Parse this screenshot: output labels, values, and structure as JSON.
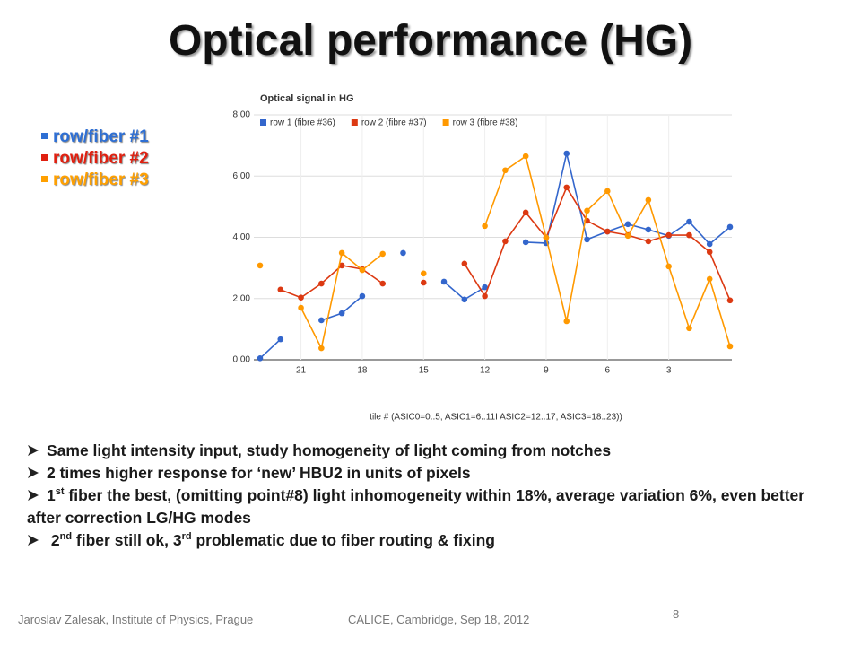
{
  "title": "Optical performance (HG)",
  "legend_bullets": [
    "row/fiber #1",
    "row/fiber #2",
    "row/fiber #3"
  ],
  "bullets": [
    [
      "Same light intensity input, study homogeneity of light coming from notches"
    ],
    [
      "2 times higher response for ‘new’ HBU2 in units of pixels"
    ],
    [
      "1",
      "st",
      " fiber the best, (omitting point#8) light inhomogeneity within 18%, average variation 6%, even better after correction LG/HG modes"
    ],
    [
      "2",
      "nd",
      " fiber still ok, 3",
      "rd",
      " problematic due to fiber routing & fixing"
    ]
  ],
  "footer": {
    "author": "Jaroslav Zalesak, Institute of Physics, Prague",
    "event": "CALICE, Cambridge, Sep 18, 2012",
    "page": "8"
  },
  "chart_data": {
    "type": "line",
    "title": "Optical signal in HG",
    "xlabel": "tile # (ASIC0=0..5; ASIC1=6..11I ASIC2=12..17; ASIC3=18..23))",
    "categories": [
      null,
      null,
      "21",
      null,
      null,
      "18",
      null,
      null,
      "15",
      null,
      null,
      "12",
      null,
      null,
      "9",
      null,
      null,
      "6",
      null,
      null,
      "3",
      null,
      null,
      null
    ],
    "ylim": [
      0,
      8
    ],
    "yticks": [
      {
        "value": 0,
        "label": "0,00"
      },
      {
        "value": 2,
        "label": "2,00"
      },
      {
        "value": 4,
        "label": "4,00"
      },
      {
        "value": 6,
        "label": "6,00"
      },
      {
        "value": 8,
        "label": "8,00"
      }
    ],
    "grid": true,
    "series": [
      {
        "name": "row 1 (fibre #36)",
        "color": "#3366cc",
        "values": [
          0.05,
          0.67,
          null,
          1.29,
          1.52,
          2.08,
          null,
          3.49,
          null,
          2.55,
          1.97,
          2.37,
          null,
          3.84,
          3.81,
          6.74,
          3.93,
          4.19,
          4.43,
          4.25,
          4.05,
          4.51,
          3.78,
          4.34
        ]
      },
      {
        "name": "row 2 (fibre #37)",
        "color": "#dc3912",
        "values": [
          null,
          2.29,
          2.03,
          2.49,
          3.08,
          2.96,
          2.49,
          null,
          2.52,
          null,
          3.14,
          2.08,
          3.87,
          4.81,
          3.99,
          5.63,
          4.54,
          4.19,
          4.07,
          3.87,
          4.07,
          4.07,
          3.52,
          1.94
        ]
      },
      {
        "name": "row 3 (fibre #38)",
        "color": "#ff9900",
        "values": [
          3.08,
          null,
          1.7,
          0.38,
          3.49,
          2.93,
          3.46,
          null,
          2.82,
          null,
          null,
          4.37,
          6.19,
          6.65,
          3.99,
          1.26,
          4.87,
          5.51,
          4.05,
          5.22,
          3.05,
          1.03,
          2.64,
          0.44
        ]
      }
    ]
  }
}
